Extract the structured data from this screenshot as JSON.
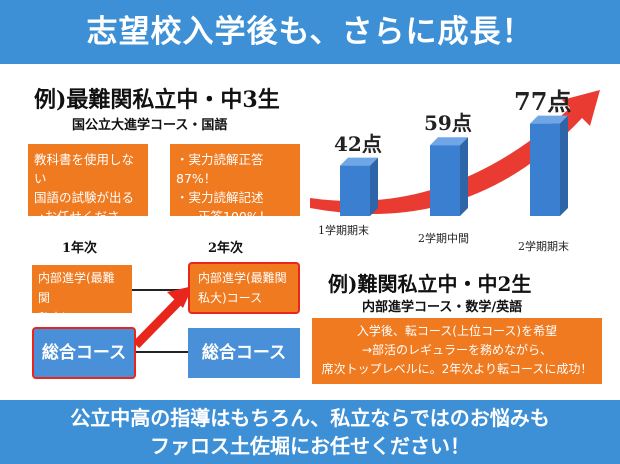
{
  "top_banner": "志望校入学後も、さらに成長！",
  "example1": {
    "title": "例)最難関私立中・中3生",
    "subtitle": "国公立大進学コース・国語",
    "box_left": [
      "教科書を使用しない",
      "国語の試験が出る",
      "→お任せください！"
    ],
    "box_right": [
      "・実力読解正答87%！",
      "・実力読解記述",
      "正答100%！"
    ]
  },
  "years": {
    "year1": "1年次",
    "year2": "2年次"
  },
  "courses": {
    "internal_1": [
      "内部進学(最難関",
      "私大)コース"
    ],
    "internal_2": [
      "内部進学(最難関",
      "私大)コース"
    ],
    "general_1": "総合コース",
    "general_2": "総合コース"
  },
  "chart_data": {
    "type": "bar",
    "categories": [
      "1学期期末",
      "2学期中間",
      "2学期期末"
    ],
    "data_labels": [
      "42点",
      "59点",
      "77点"
    ],
    "values": [
      42,
      59,
      77
    ]
  },
  "example2": {
    "title": "例)難関私立中・中2生",
    "subtitle": "内部進学コース・数学/英語",
    "box_lines": [
      "入学後、転コース(上位コース)を希望",
      "→部活のレギュラーを務めながら、",
      "席次トップレベルに。2年次より転コースに成功！"
    ]
  },
  "bottom_banner": [
    "公立中高の指導はもちろん、私立ならではのお悩みも",
    "ファロス土佐堀にお任せください！"
  ],
  "colors": {
    "banner_blue": "#3d8fd6",
    "orange": "#f07a20",
    "arrow_red": "#e8261c",
    "bar_blue": "#3b7fd1"
  }
}
